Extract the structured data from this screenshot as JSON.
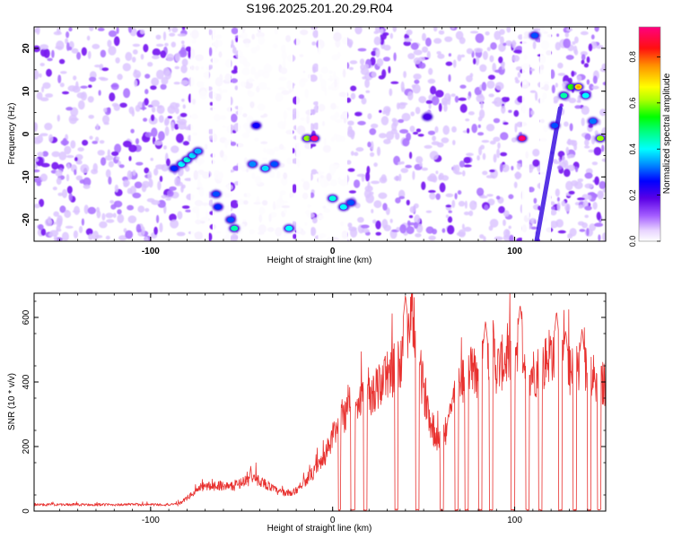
{
  "title": "S196.2025.201.20.29.R04",
  "chart_data": [
    {
      "type": "heatmap",
      "xlabel": "Height of straight line (km)",
      "ylabel": "Frequency (Hz)",
      "xlim": [
        -164,
        150
      ],
      "ylim": [
        -25,
        25
      ],
      "x_ticks": [
        {
          "v": -100,
          "label": "-100"
        },
        {
          "v": 0,
          "label": "0"
        },
        {
          "v": 100,
          "label": "100"
        }
      ],
      "y_ticks": [
        {
          "v": -20,
          "label": "-20"
        },
        {
          "v": -10,
          "label": "-10"
        },
        {
          "v": 0,
          "label": "0"
        },
        {
          "v": 10,
          "label": "10"
        },
        {
          "v": 20,
          "label": "20"
        }
      ],
      "colorbar": {
        "label": "Normalized spectral amplitude",
        "range": [
          0,
          0.93
        ],
        "ticks": [
          {
            "v": 0.0,
            "label": "0.0"
          },
          {
            "v": 0.2,
            "label": "0.2"
          },
          {
            "v": 0.4,
            "label": "0.4"
          },
          {
            "v": 0.6,
            "label": "0.6"
          },
          {
            "v": 0.8,
            "label": "0.8"
          }
        ]
      },
      "blank_columns_km": [
        [
          -78,
          -68
        ],
        [
          -66,
          -56
        ],
        [
          -52,
          -22
        ],
        [
          -20,
          -12
        ],
        [
          -8,
          8
        ],
        [
          104,
          108
        ],
        [
          114,
          120
        ]
      ],
      "features": [
        {
          "x": -87,
          "y": -8,
          "value": 0.28
        },
        {
          "x": -83,
          "y": -7,
          "value": 0.4
        },
        {
          "x": -80,
          "y": -6,
          "value": 0.42
        },
        {
          "x": -77,
          "y": -5,
          "value": 0.38
        },
        {
          "x": -74,
          "y": -4,
          "value": 0.35
        },
        {
          "x": -64,
          "y": -14,
          "value": 0.3
        },
        {
          "x": -63,
          "y": -17,
          "value": 0.28
        },
        {
          "x": -56,
          "y": -20,
          "value": 0.3
        },
        {
          "x": -54,
          "y": -22,
          "value": 0.45
        },
        {
          "x": -42,
          "y": 2,
          "value": 0.25
        },
        {
          "x": -44,
          "y": -7,
          "value": 0.33
        },
        {
          "x": -37,
          "y": -8,
          "value": 0.38
        },
        {
          "x": -32,
          "y": -7,
          "value": 0.3
        },
        {
          "x": -24,
          "y": -22,
          "value": 0.4
        },
        {
          "x": -14,
          "y": -1,
          "value": 0.6
        },
        {
          "x": -10,
          "y": -1,
          "value": 0.92
        },
        {
          "x": 0,
          "y": -15,
          "value": 0.42
        },
        {
          "x": 6,
          "y": -17,
          "value": 0.4
        },
        {
          "x": 10,
          "y": -16,
          "value": 0.3
        },
        {
          "x": 104,
          "y": -1,
          "value": 0.9
        },
        {
          "x": 122,
          "y": 2,
          "value": 0.3
        },
        {
          "x": 127,
          "y": 9,
          "value": 0.45
        },
        {
          "x": 131,
          "y": 11,
          "value": 0.55
        },
        {
          "x": 135,
          "y": 11,
          "value": 0.7
        },
        {
          "x": 139,
          "y": 9,
          "value": 0.4
        },
        {
          "x": 143,
          "y": 3,
          "value": 0.32
        },
        {
          "x": 147,
          "y": -1,
          "value": 0.6
        },
        {
          "x": 111,
          "y": 23,
          "value": 0.3
        },
        {
          "x": 52,
          "y": 4,
          "value": 0.2
        }
      ],
      "streak": {
        "from": [
          112,
          -25
        ],
        "to": [
          125,
          6
        ],
        "value": 0.22
      }
    },
    {
      "type": "line",
      "xlabel": "Height of straight line (km)",
      "ylabel": "SNR (10 * v/v)",
      "xlim": [
        -164,
        150
      ],
      "ylim": [
        0,
        675
      ],
      "x_ticks": [
        {
          "v": -100,
          "label": "-100"
        },
        {
          "v": 0,
          "label": "0"
        },
        {
          "v": 100,
          "label": "100"
        }
      ],
      "y_ticks": [
        {
          "v": 0,
          "label": "0"
        },
        {
          "v": 200,
          "label": "200"
        },
        {
          "v": 400,
          "label": "400"
        },
        {
          "v": 600,
          "label": "600"
        }
      ],
      "color": "#e8312f",
      "control_points": [
        [
          -164,
          20
        ],
        [
          -85,
          20
        ],
        [
          -80,
          40
        ],
        [
          -72,
          75
        ],
        [
          -62,
          80
        ],
        [
          -55,
          75
        ],
        [
          -48,
          95
        ],
        [
          -40,
          95
        ],
        [
          -30,
          60
        ],
        [
          -22,
          55
        ],
        [
          -15,
          95
        ],
        [
          -10,
          120
        ],
        [
          -5,
          160
        ],
        [
          -2,
          200
        ],
        [
          0,
          230
        ],
        [
          5,
          280
        ],
        [
          10,
          340
        ],
        [
          15,
          330
        ],
        [
          20,
          350
        ],
        [
          25,
          380
        ],
        [
          30,
          420
        ],
        [
          35,
          440
        ],
        [
          40,
          480
        ],
        [
          42,
          560
        ],
        [
          44,
          600
        ],
        [
          46,
          490
        ],
        [
          50,
          380
        ],
        [
          55,
          250
        ],
        [
          60,
          200
        ],
        [
          65,
          320
        ],
        [
          70,
          400
        ],
        [
          75,
          440
        ],
        [
          80,
          420
        ],
        [
          85,
          480
        ],
        [
          88,
          520
        ],
        [
          90,
          440
        ],
        [
          95,
          470
        ],
        [
          100,
          480
        ],
        [
          103,
          560
        ],
        [
          106,
          450
        ],
        [
          110,
          430
        ],
        [
          115,
          440
        ],
        [
          120,
          500
        ],
        [
          125,
          430
        ],
        [
          128,
          470
        ],
        [
          131,
          420
        ],
        [
          134,
          450
        ],
        [
          138,
          440
        ],
        [
          142,
          430
        ],
        [
          146,
          380
        ],
        [
          150,
          400
        ]
      ],
      "peaks": [
        [
          40,
          670
        ],
        [
          -45,
          140
        ],
        [
          84,
          590
        ],
        [
          103,
          640
        ],
        [
          123,
          620
        ],
        [
          137,
          565
        ],
        [
          128,
          560
        ]
      ],
      "dropouts": [
        [
          3,
          4.5
        ],
        [
          10,
          12.3
        ],
        [
          17,
          19
        ],
        [
          34,
          35.8
        ],
        [
          45.5,
          47.5
        ],
        [
          59,
          61
        ],
        [
          67,
          69
        ],
        [
          72.5,
          74.5
        ],
        [
          80,
          82
        ],
        [
          86,
          88
        ],
        [
          98,
          100
        ],
        [
          106,
          108
        ],
        [
          113,
          115
        ],
        [
          124,
          126
        ],
        [
          132,
          134
        ],
        [
          140,
          142
        ],
        [
          145.5,
          147.5
        ]
      ]
    }
  ]
}
